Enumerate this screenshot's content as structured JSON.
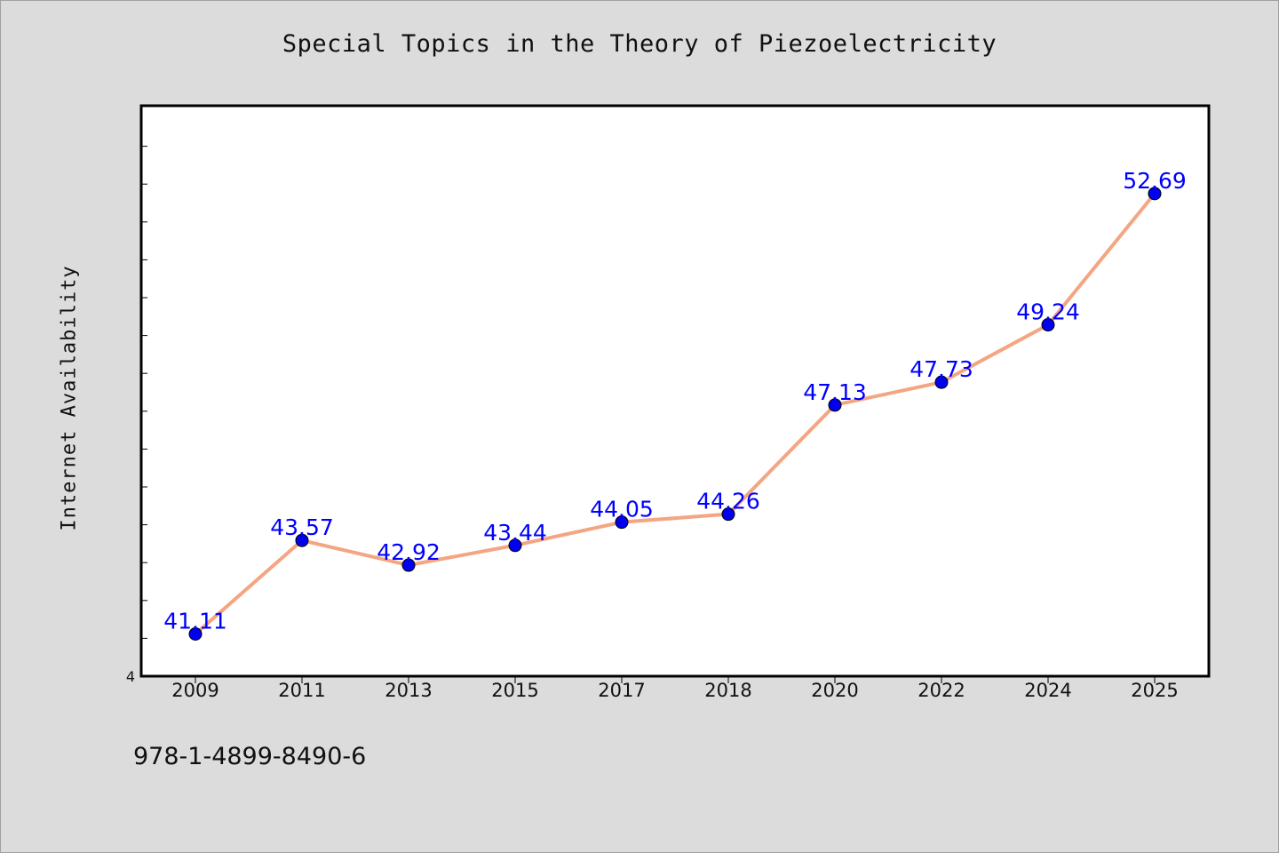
{
  "chart_data": {
    "type": "line",
    "title": "Special Topics in the Theory of Piezoelectricity",
    "ylabel": "Internet Availability",
    "xlabel": "",
    "categories": [
      "2009",
      "2011",
      "2013",
      "2015",
      "2017",
      "2018",
      "2020",
      "2022",
      "2024",
      "2025"
    ],
    "values": [
      41.11,
      43.57,
      42.92,
      43.44,
      44.05,
      44.26,
      47.13,
      47.73,
      49.24,
      52.69
    ],
    "data_labels": [
      "41.11",
      "43.57",
      "42.92",
      "43.44",
      "44.05",
      "44.26",
      "47.13",
      "47.73",
      "49.24",
      "52.69"
    ],
    "y_tick_labels": [
      "4"
    ],
    "ylim": [
      40,
      55
    ],
    "grid": false,
    "line_color": "#f4a582",
    "marker_color": "#0000ee",
    "label_color": "#0000ff",
    "plot_background": "#ffffff"
  },
  "footnote": "978-1-4899-8490-6"
}
